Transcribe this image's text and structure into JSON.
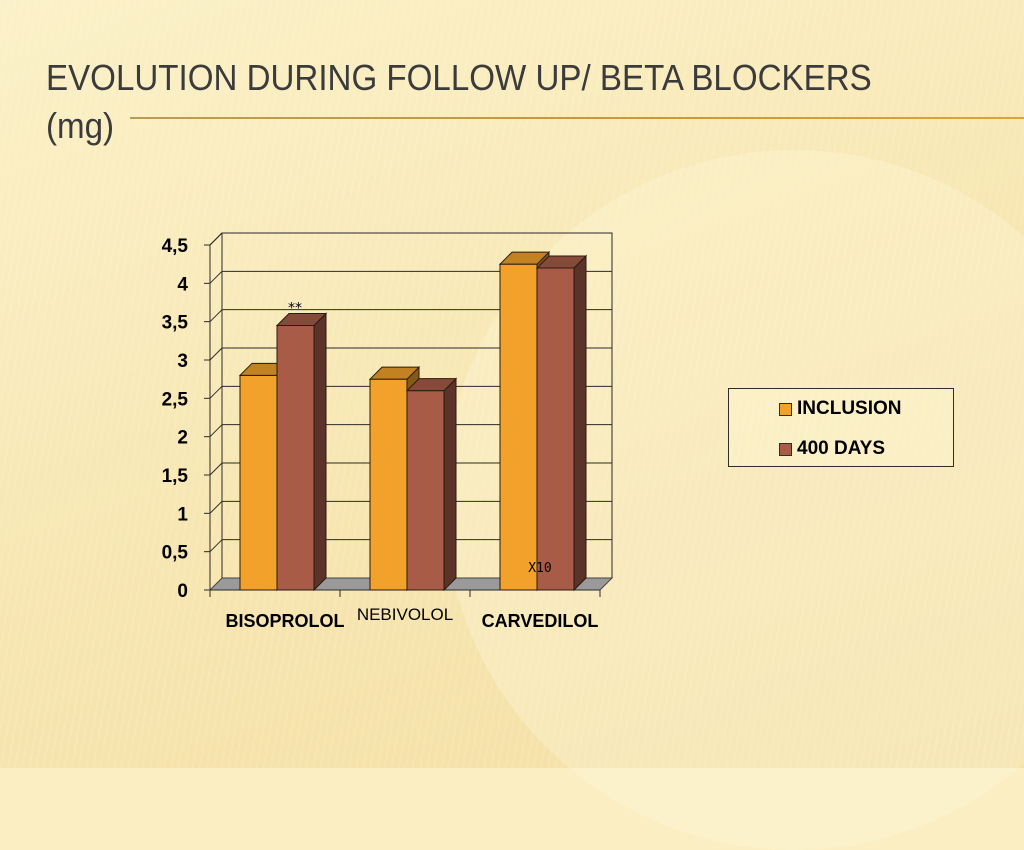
{
  "slide": {
    "title": "EVOLUTION DURING FOLLOW UP/ BETA BLOCKERS (mg)"
  },
  "chart_data": {
    "type": "bar",
    "title": "",
    "xlabel": "",
    "ylabel": "",
    "categories": [
      "BISOPROLOL",
      "NEBIVOLOL",
      "CARVEDILOL"
    ],
    "series": [
      {
        "name": "INCLUSION",
        "values": [
          2.8,
          2.75,
          4.25
        ],
        "color": "#f2a22a"
      },
      {
        "name": "400 DAYS",
        "values": [
          3.45,
          2.6,
          4.2
        ],
        "color": "#a85c48"
      }
    ],
    "ylim": [
      0,
      4.5
    ],
    "yticks": [
      "0",
      "0,5",
      "1",
      "1,5",
      "2",
      "2,5",
      "3",
      "3,5",
      "4",
      "4,5"
    ],
    "grid": true,
    "legend_position": "right",
    "annotations": [
      "**",
      "X10"
    ],
    "colors": {
      "floor": "#9a9a9a",
      "gridline": "#2a2a2a"
    }
  }
}
